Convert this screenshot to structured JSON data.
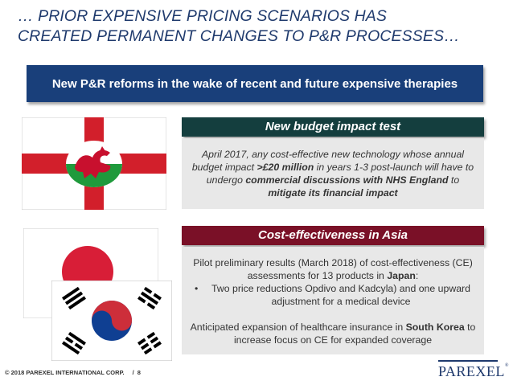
{
  "slide": {
    "title_line1": "… PRIOR EXPENSIVE PRICING SCENARIOS HAS",
    "title_line2": "CREATED PERMANENT CHANGES TO P&R PROCESSES…",
    "banner": "New P&R reforms in the wake of recent and future expensive therapies"
  },
  "box1": {
    "heading": "New budget impact test",
    "text_1": "April 2017, any cost-effective new technology whose annual budget impact ",
    "text_bold1": ">£20 million",
    "text_2": " in years 1-3 post-launch will have to undergo ",
    "text_bold2": "commercial discussions with NHS England",
    "text_3": " to ",
    "text_bold3": "mitigate its financial impact"
  },
  "box2": {
    "heading": "Cost-effectiveness in Asia",
    "para1_a": "Pilot preliminary results (March 2018) of cost-effectiveness (CE) assessments for 13 products in ",
    "para1_bold": "Japan",
    "para1_b": ":",
    "bullet_marker": "•",
    "bullet": "Two price reductions Opdivo and Kadcyla) and one upward adjustment for a medical device",
    "para2_a": "Anticipated expansion of healthcare insurance in ",
    "para2_bold": "South Korea",
    "para2_b": " to increase focus on CE for expanded coverage"
  },
  "footer": {
    "copyright": "© 2018 PAREXEL INTERNATIONAL CORP.",
    "separator": "/",
    "page": "8"
  },
  "logo": {
    "text": "PAREXEL",
    "tm": "®"
  },
  "flags": [
    "england-wales-flag",
    "japan-flag",
    "south-korea-flag"
  ],
  "colors": {
    "title": "#1f3a6d",
    "banner": "#193f7a",
    "box1_head": "#143e3e",
    "box2_head": "#7a1027",
    "body_bg": "#e8e8e8"
  }
}
